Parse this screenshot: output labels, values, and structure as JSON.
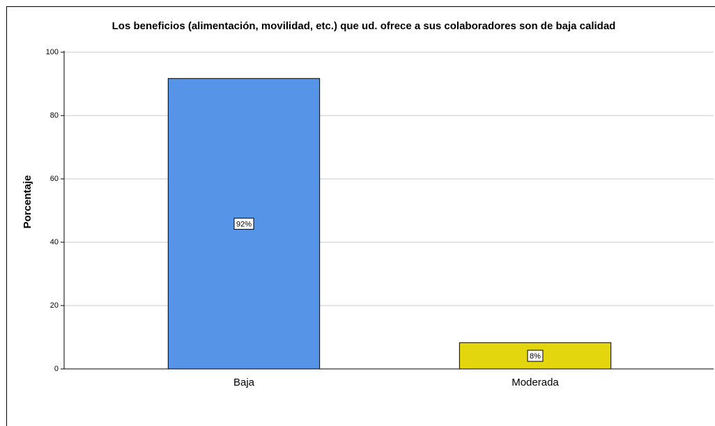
{
  "chart_data": {
    "type": "bar",
    "title": "Los beneficios (alimentación, movilidad, etc.) que ud.  ofrece a sus  colaboradores son de baja calidad",
    "ylabel": "Porcentaje",
    "categories": [
      "Baja",
      "Moderada"
    ],
    "values": [
      91.7,
      8.3
    ],
    "value_labels": [
      "92%",
      "8%"
    ],
    "colors": [
      "#5594e6",
      "#e3d50e"
    ],
    "ylim": [
      0,
      100
    ],
    "yticks": [
      0,
      20,
      40,
      60,
      80,
      100
    ],
    "grid": true
  }
}
